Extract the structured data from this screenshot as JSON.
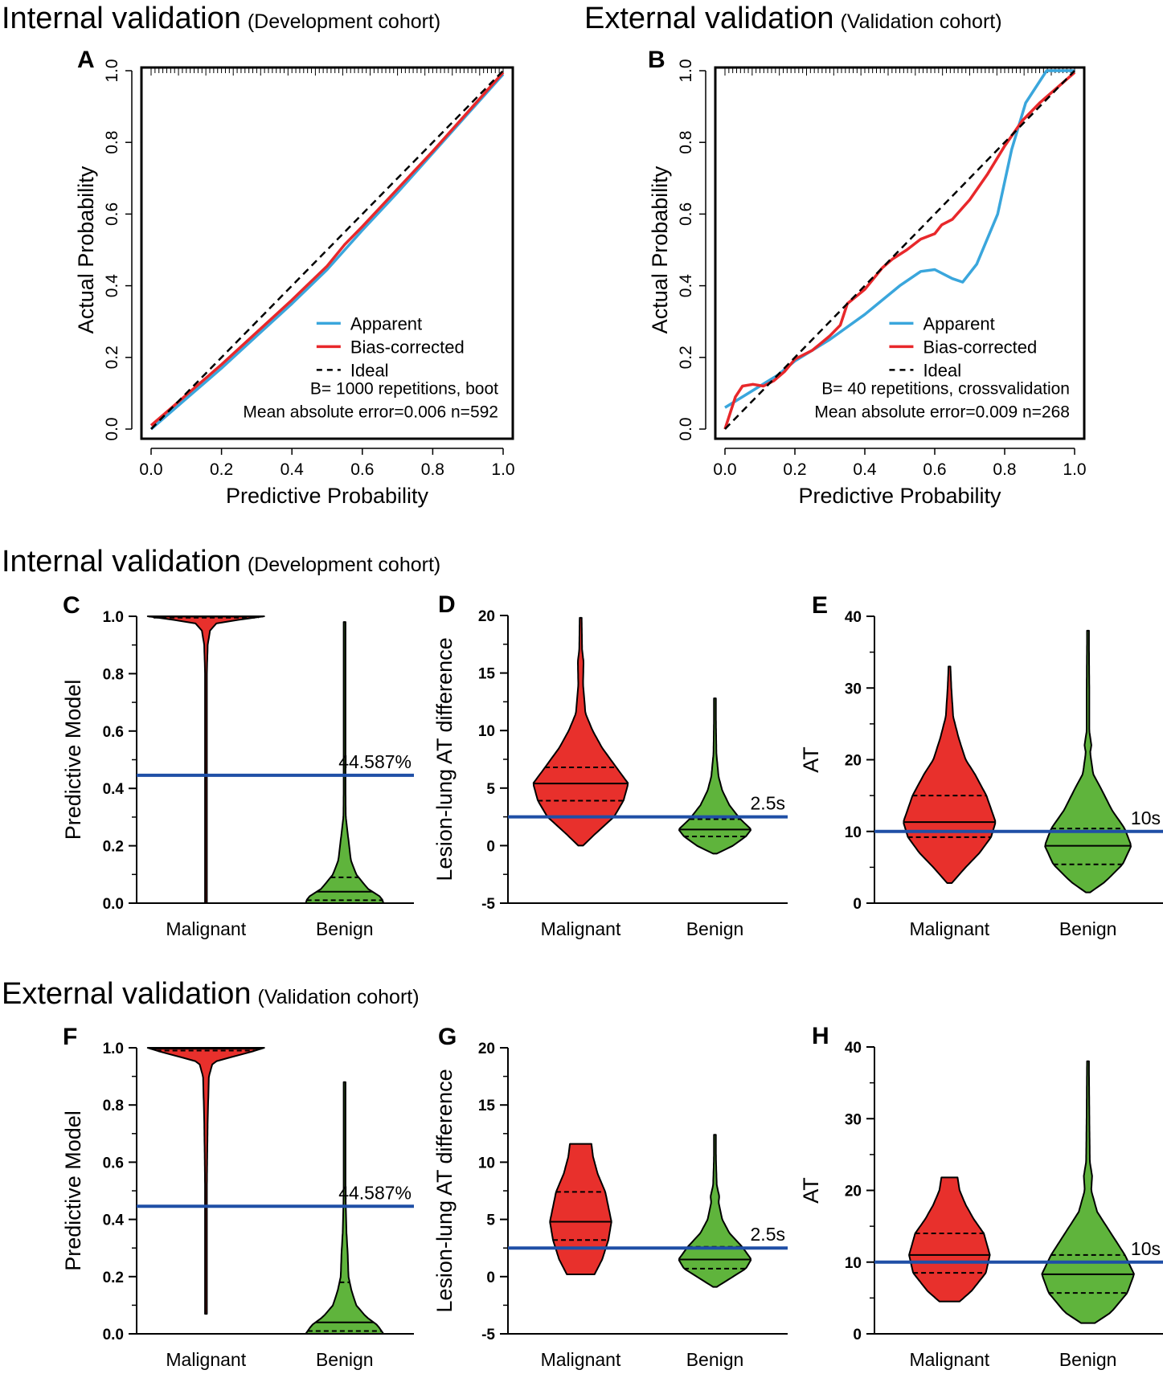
{
  "headings": {
    "top_left": {
      "main": "Internal validation",
      "sub": "(Development cohort)"
    },
    "top_right": {
      "main": "External validation",
      "sub": "(Validation cohort)"
    },
    "middle": {
      "main": "Internal validation",
      "sub": "(Development cohort)"
    },
    "bottom": {
      "main": "External validation",
      "sub": "(Validation cohort)"
    }
  },
  "colors": {
    "apparent": "#3aa6dc",
    "bias_corrected": "#e8282b",
    "ideal": "#000000",
    "malignant": "#e8302c",
    "benign": "#5fb43c",
    "threshold": "#1f4fa6"
  },
  "chart_data": [
    {
      "panel": "A",
      "type": "line",
      "xlabel": "Predictive Probability",
      "ylabel": "Actual Probability",
      "xlim": [
        0,
        1
      ],
      "ylim": [
        0,
        1
      ],
      "xticks": [
        "0.0",
        "0.2",
        "0.4",
        "0.6",
        "0.8",
        "1.0"
      ],
      "yticks": [
        "0.0",
        "0.2",
        "0.4",
        "0.6",
        "0.8",
        "1.0"
      ],
      "legend": {
        "position": "bottom-right",
        "entries": [
          "Apparent",
          "Bias-corrected",
          "Ideal"
        ]
      },
      "annotations": [
        "B= 1000 repetitions, boot",
        "Mean absolute error=0.006 n=592"
      ],
      "series": [
        {
          "name": "Apparent",
          "x": [
            0,
            0.1,
            0.2,
            0.3,
            0.4,
            0.5,
            0.6,
            0.7,
            0.8,
            0.9,
            1.0
          ],
          "y": [
            0.0,
            0.085,
            0.17,
            0.26,
            0.35,
            0.445,
            0.555,
            0.66,
            0.77,
            0.88,
            0.99
          ]
        },
        {
          "name": "Bias-corrected",
          "x": [
            0,
            0.1,
            0.2,
            0.3,
            0.4,
            0.5,
            0.55,
            0.6,
            0.7,
            0.8,
            0.9,
            1.0
          ],
          "y": [
            0.01,
            0.095,
            0.18,
            0.27,
            0.36,
            0.455,
            0.515,
            0.565,
            0.67,
            0.775,
            0.885,
            0.995
          ]
        },
        {
          "name": "Ideal",
          "x": [
            0,
            1
          ],
          "y": [
            0,
            1
          ]
        }
      ]
    },
    {
      "panel": "B",
      "type": "line",
      "xlabel": "Predictive Probability",
      "ylabel": "Actual Probability",
      "xlim": [
        0,
        1
      ],
      "ylim": [
        0,
        1
      ],
      "xticks": [
        "0.0",
        "0.2",
        "0.4",
        "0.6",
        "0.8",
        "1.0"
      ],
      "yticks": [
        "0.0",
        "0.2",
        "0.4",
        "0.6",
        "0.8",
        "1.0"
      ],
      "legend": {
        "position": "bottom-right",
        "entries": [
          "Apparent",
          "Bias-corrected",
          "Ideal"
        ]
      },
      "annotations": [
        "B= 40 repetitions, crossvalidation",
        "Mean absolute error=0.009 n=268"
      ],
      "series": [
        {
          "name": "Apparent",
          "x": [
            0,
            0.05,
            0.1,
            0.15,
            0.2,
            0.3,
            0.4,
            0.5,
            0.56,
            0.6,
            0.65,
            0.68,
            0.72,
            0.78,
            0.82,
            0.86,
            0.92,
            1.0
          ],
          "y": [
            0.06,
            0.09,
            0.12,
            0.15,
            0.19,
            0.25,
            0.32,
            0.4,
            0.44,
            0.445,
            0.42,
            0.41,
            0.46,
            0.6,
            0.78,
            0.91,
            1.0,
            1.0
          ]
        },
        {
          "name": "Bias-corrected",
          "x": [
            0,
            0.03,
            0.05,
            0.08,
            0.11,
            0.14,
            0.17,
            0.2,
            0.25,
            0.3,
            0.33,
            0.35,
            0.4,
            0.45,
            0.48,
            0.52,
            0.56,
            0.6,
            0.62,
            0.65,
            0.7,
            0.75,
            0.8,
            0.85,
            0.9,
            1.0
          ],
          "y": [
            0.0,
            0.09,
            0.12,
            0.125,
            0.12,
            0.135,
            0.16,
            0.195,
            0.22,
            0.26,
            0.29,
            0.35,
            0.39,
            0.45,
            0.475,
            0.5,
            0.53,
            0.545,
            0.57,
            0.585,
            0.64,
            0.71,
            0.79,
            0.86,
            0.91,
            0.995
          ]
        },
        {
          "name": "Ideal",
          "x": [
            0,
            1
          ],
          "y": [
            0,
            1
          ]
        }
      ]
    },
    {
      "panel": "C",
      "type": "violin",
      "ylabel": "Predictive Model",
      "ylim": [
        0,
        1
      ],
      "yticks": [
        "0.0",
        "0.2",
        "0.4",
        "0.6",
        "0.8",
        "1.0"
      ],
      "threshold": {
        "value": 0.44587,
        "label": "44.587%"
      },
      "categories": [
        "Malignant",
        "Benign"
      ],
      "groups": [
        {
          "name": "Malignant",
          "color_key": "malignant",
          "min": 0.0,
          "max": 1.0,
          "median": 0.999,
          "q1": 0.995,
          "q3": 1.0,
          "density": [
            [
              0.0,
              0.01
            ],
            [
              0.3,
              0.01
            ],
            [
              0.6,
              0.012
            ],
            [
              0.8,
              0.015
            ],
            [
              0.9,
              0.03
            ],
            [
              0.95,
              0.07
            ],
            [
              0.98,
              0.2
            ],
            [
              0.995,
              0.9
            ],
            [
              1.0,
              1.0
            ]
          ]
        },
        {
          "name": "Benign",
          "color_key": "benign",
          "min": 0.0,
          "max": 0.98,
          "median": 0.04,
          "q1": 0.01,
          "q3": 0.09,
          "density": [
            [
              0.0,
              1.0
            ],
            [
              0.02,
              0.95
            ],
            [
              0.05,
              0.6
            ],
            [
              0.1,
              0.3
            ],
            [
              0.15,
              0.16
            ],
            [
              0.22,
              0.1
            ],
            [
              0.3,
              0.03
            ],
            [
              0.5,
              0.015
            ],
            [
              0.8,
              0.012
            ],
            [
              0.98,
              0.01
            ]
          ]
        }
      ]
    },
    {
      "panel": "D",
      "type": "violin",
      "ylabel": "Lesion-lung AT difference",
      "ylim": [
        -5,
        20
      ],
      "yticks": [
        "-5",
        "0",
        "5",
        "10",
        "15",
        "20"
      ],
      "threshold": {
        "value": 2.5,
        "label": "2.5s"
      },
      "categories": [
        "Malignant",
        "Benign"
      ],
      "groups": [
        {
          "name": "Malignant",
          "color_key": "malignant",
          "min": 0.0,
          "max": 19.8,
          "median": 5.4,
          "q1": 3.9,
          "q3": 6.8,
          "density": [
            [
              0.0,
              0.05
            ],
            [
              1.0,
              0.3
            ],
            [
              2.5,
              0.7
            ],
            [
              3.9,
              0.9
            ],
            [
              5.4,
              1.0
            ],
            [
              6.8,
              0.75
            ],
            [
              8.5,
              0.45
            ],
            [
              10.0,
              0.25
            ],
            [
              11.5,
              0.1
            ],
            [
              14.0,
              0.05
            ],
            [
              16.0,
              0.06
            ],
            [
              17.0,
              0.03
            ],
            [
              19.8,
              0.02
            ]
          ]
        },
        {
          "name": "Benign",
          "color_key": "benign",
          "min": -0.7,
          "max": 12.8,
          "median": 1.4,
          "q1": 0.8,
          "q3": 2.3,
          "density": [
            [
              -0.7,
              0.05
            ],
            [
              0.0,
              0.5
            ],
            [
              0.8,
              0.85
            ],
            [
              1.4,
              1.0
            ],
            [
              2.3,
              0.7
            ],
            [
              3.5,
              0.4
            ],
            [
              4.8,
              0.2
            ],
            [
              6.0,
              0.1
            ],
            [
              8.0,
              0.04
            ],
            [
              10.0,
              0.03
            ],
            [
              12.8,
              0.02
            ]
          ]
        }
      ]
    },
    {
      "panel": "E",
      "type": "violin",
      "ylabel": "AT",
      "ylim": [
        0,
        40
      ],
      "yticks": [
        "0",
        "10",
        "20",
        "30",
        "40"
      ],
      "threshold": {
        "value": 10,
        "label": "10s"
      },
      "categories": [
        "Malignant",
        "Benign"
      ],
      "groups": [
        {
          "name": "Malignant",
          "color_key": "malignant",
          "min": 2.8,
          "max": 33.0,
          "median": 11.3,
          "q1": 9.2,
          "q3": 15.0,
          "density": [
            [
              2.8,
              0.05
            ],
            [
              5.0,
              0.35
            ],
            [
              7.0,
              0.65
            ],
            [
              9.2,
              0.9
            ],
            [
              11.3,
              1.0
            ],
            [
              15.0,
              0.8
            ],
            [
              18.0,
              0.55
            ],
            [
              20.0,
              0.35
            ],
            [
              23.0,
              0.2
            ],
            [
              26.0,
              0.08
            ],
            [
              30.0,
              0.04
            ],
            [
              33.0,
              0.02
            ]
          ]
        },
        {
          "name": "Benign",
          "color_key": "benign",
          "min": 1.5,
          "max": 38.0,
          "median": 8.0,
          "q1": 5.4,
          "q3": 10.4,
          "density": [
            [
              1.5,
              0.05
            ],
            [
              3.0,
              0.4
            ],
            [
              5.4,
              0.8
            ],
            [
              8.0,
              1.0
            ],
            [
              10.4,
              0.85
            ],
            [
              13.0,
              0.55
            ],
            [
              16.0,
              0.3
            ],
            [
              18.0,
              0.12
            ],
            [
              21.0,
              0.05
            ],
            [
              22.0,
              0.08
            ],
            [
              24.0,
              0.03
            ],
            [
              30.0,
              0.03
            ],
            [
              38.0,
              0.02
            ]
          ]
        }
      ]
    },
    {
      "panel": "F",
      "type": "violin",
      "ylabel": "Predictive Model",
      "ylim": [
        0,
        1
      ],
      "yticks": [
        "0.0",
        "0.2",
        "0.4",
        "0.6",
        "0.8",
        "1.0"
      ],
      "threshold": {
        "value": 0.44587,
        "label": "44.587%"
      },
      "categories": [
        "Malignant",
        "Benign"
      ],
      "groups": [
        {
          "name": "Malignant",
          "color_key": "malignant",
          "min": 0.07,
          "max": 1.0,
          "median": 0.997,
          "q1": 0.99,
          "q3": 1.0,
          "density": [
            [
              0.07,
              0.01
            ],
            [
              0.3,
              0.012
            ],
            [
              0.5,
              0.015
            ],
            [
              0.6,
              0.02
            ],
            [
              0.75,
              0.03
            ],
            [
              0.9,
              0.05
            ],
            [
              0.95,
              0.12
            ],
            [
              0.99,
              0.85
            ],
            [
              1.0,
              1.0
            ]
          ]
        },
        {
          "name": "Benign",
          "color_key": "benign",
          "min": 0.0,
          "max": 0.88,
          "median": 0.04,
          "q1": 0.01,
          "q3": 0.18,
          "density": [
            [
              0.0,
              1.0
            ],
            [
              0.03,
              0.85
            ],
            [
              0.06,
              0.55
            ],
            [
              0.1,
              0.3
            ],
            [
              0.15,
              0.18
            ],
            [
              0.2,
              0.1
            ],
            [
              0.28,
              0.08
            ],
            [
              0.35,
              0.05
            ],
            [
              0.45,
              0.03
            ],
            [
              0.6,
              0.015
            ],
            [
              0.88,
              0.01
            ]
          ]
        }
      ]
    },
    {
      "panel": "G",
      "type": "violin",
      "ylabel": "Lesion-lung AT difference",
      "ylim": [
        -5,
        20
      ],
      "yticks": [
        "-5",
        "0",
        "5",
        "10",
        "15",
        "20"
      ],
      "threshold": {
        "value": 2.5,
        "label": "2.5s"
      },
      "categories": [
        "Malignant",
        "Benign"
      ],
      "groups": [
        {
          "name": "Malignant",
          "color_key": "malignant",
          "min": 0.2,
          "max": 11.6,
          "median": 4.8,
          "q1": 3.2,
          "q3": 7.4,
          "density": [
            [
              0.2,
              0.45
            ],
            [
              1.5,
              0.7
            ],
            [
              3.2,
              0.9
            ],
            [
              4.8,
              1.0
            ],
            [
              7.4,
              0.8
            ],
            [
              9.0,
              0.55
            ],
            [
              10.5,
              0.4
            ],
            [
              11.6,
              0.35
            ]
          ]
        },
        {
          "name": "Benign",
          "color_key": "benign",
          "min": -0.9,
          "max": 12.4,
          "median": 1.5,
          "q1": 0.7,
          "q3": 2.6,
          "density": [
            [
              -0.9,
              0.05
            ],
            [
              0.0,
              0.5
            ],
            [
              0.7,
              0.85
            ],
            [
              1.5,
              1.0
            ],
            [
              2.6,
              0.75
            ],
            [
              3.8,
              0.4
            ],
            [
              5.0,
              0.2
            ],
            [
              6.5,
              0.1
            ],
            [
              7.0,
              0.12
            ],
            [
              8.0,
              0.05
            ],
            [
              10.0,
              0.03
            ],
            [
              12.4,
              0.02
            ]
          ]
        }
      ]
    },
    {
      "panel": "H",
      "type": "violin",
      "ylabel": "AT",
      "ylim": [
        0,
        40
      ],
      "yticks": [
        "0",
        "10",
        "20",
        "30",
        "40"
      ],
      "threshold": {
        "value": 10,
        "label": "10s"
      },
      "categories": [
        "Malignant",
        "Benign"
      ],
      "groups": [
        {
          "name": "Malignant",
          "color_key": "malignant",
          "min": 4.5,
          "max": 21.8,
          "median": 11.0,
          "q1": 8.5,
          "q3": 14.0,
          "density": [
            [
              4.5,
              0.25
            ],
            [
              6.0,
              0.55
            ],
            [
              8.5,
              0.9
            ],
            [
              11.0,
              1.0
            ],
            [
              14.0,
              0.85
            ],
            [
              16.0,
              0.6
            ],
            [
              18.0,
              0.4
            ],
            [
              20.0,
              0.25
            ],
            [
              21.8,
              0.2
            ]
          ]
        },
        {
          "name": "Benign",
          "color_key": "benign",
          "min": 1.5,
          "max": 38.0,
          "median": 8.3,
          "q1": 5.7,
          "q3": 11.0,
          "density": [
            [
              1.5,
              0.15
            ],
            [
              3.0,
              0.5
            ],
            [
              5.7,
              0.85
            ],
            [
              8.3,
              1.0
            ],
            [
              11.0,
              0.8
            ],
            [
              14.0,
              0.5
            ],
            [
              17.0,
              0.2
            ],
            [
              20.0,
              0.07
            ],
            [
              22.0,
              0.09
            ],
            [
              24.0,
              0.04
            ],
            [
              30.0,
              0.03
            ],
            [
              38.0,
              0.02
            ]
          ]
        }
      ]
    }
  ]
}
